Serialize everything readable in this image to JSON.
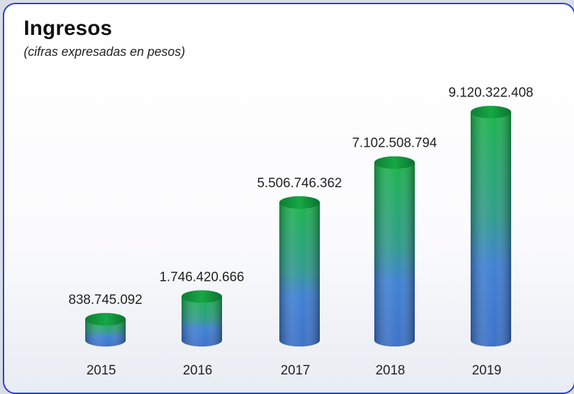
{
  "chart_data": {
    "type": "bar",
    "title": "Ingresos",
    "subtitle": "(cifras expresadas en pesos)",
    "categories": [
      "2015",
      "2016",
      "2017",
      "2018",
      "2019"
    ],
    "values": [
      838745092,
      1746420666,
      5506746362,
      7102508794,
      9120322408
    ],
    "value_labels": [
      "838.745.092",
      "1.746.420.666",
      "5.506.746.362",
      "7.102.508.794",
      "9.120.322.408"
    ],
    "xlabel": "",
    "ylabel": "",
    "ylim": [
      0,
      10000000000
    ],
    "grid": false,
    "legend": "none",
    "bar_shape": "cylinder",
    "colors": {
      "top": "#1fb44a",
      "bottom": "#3f7fd0",
      "border": "#2a3fd0"
    }
  }
}
